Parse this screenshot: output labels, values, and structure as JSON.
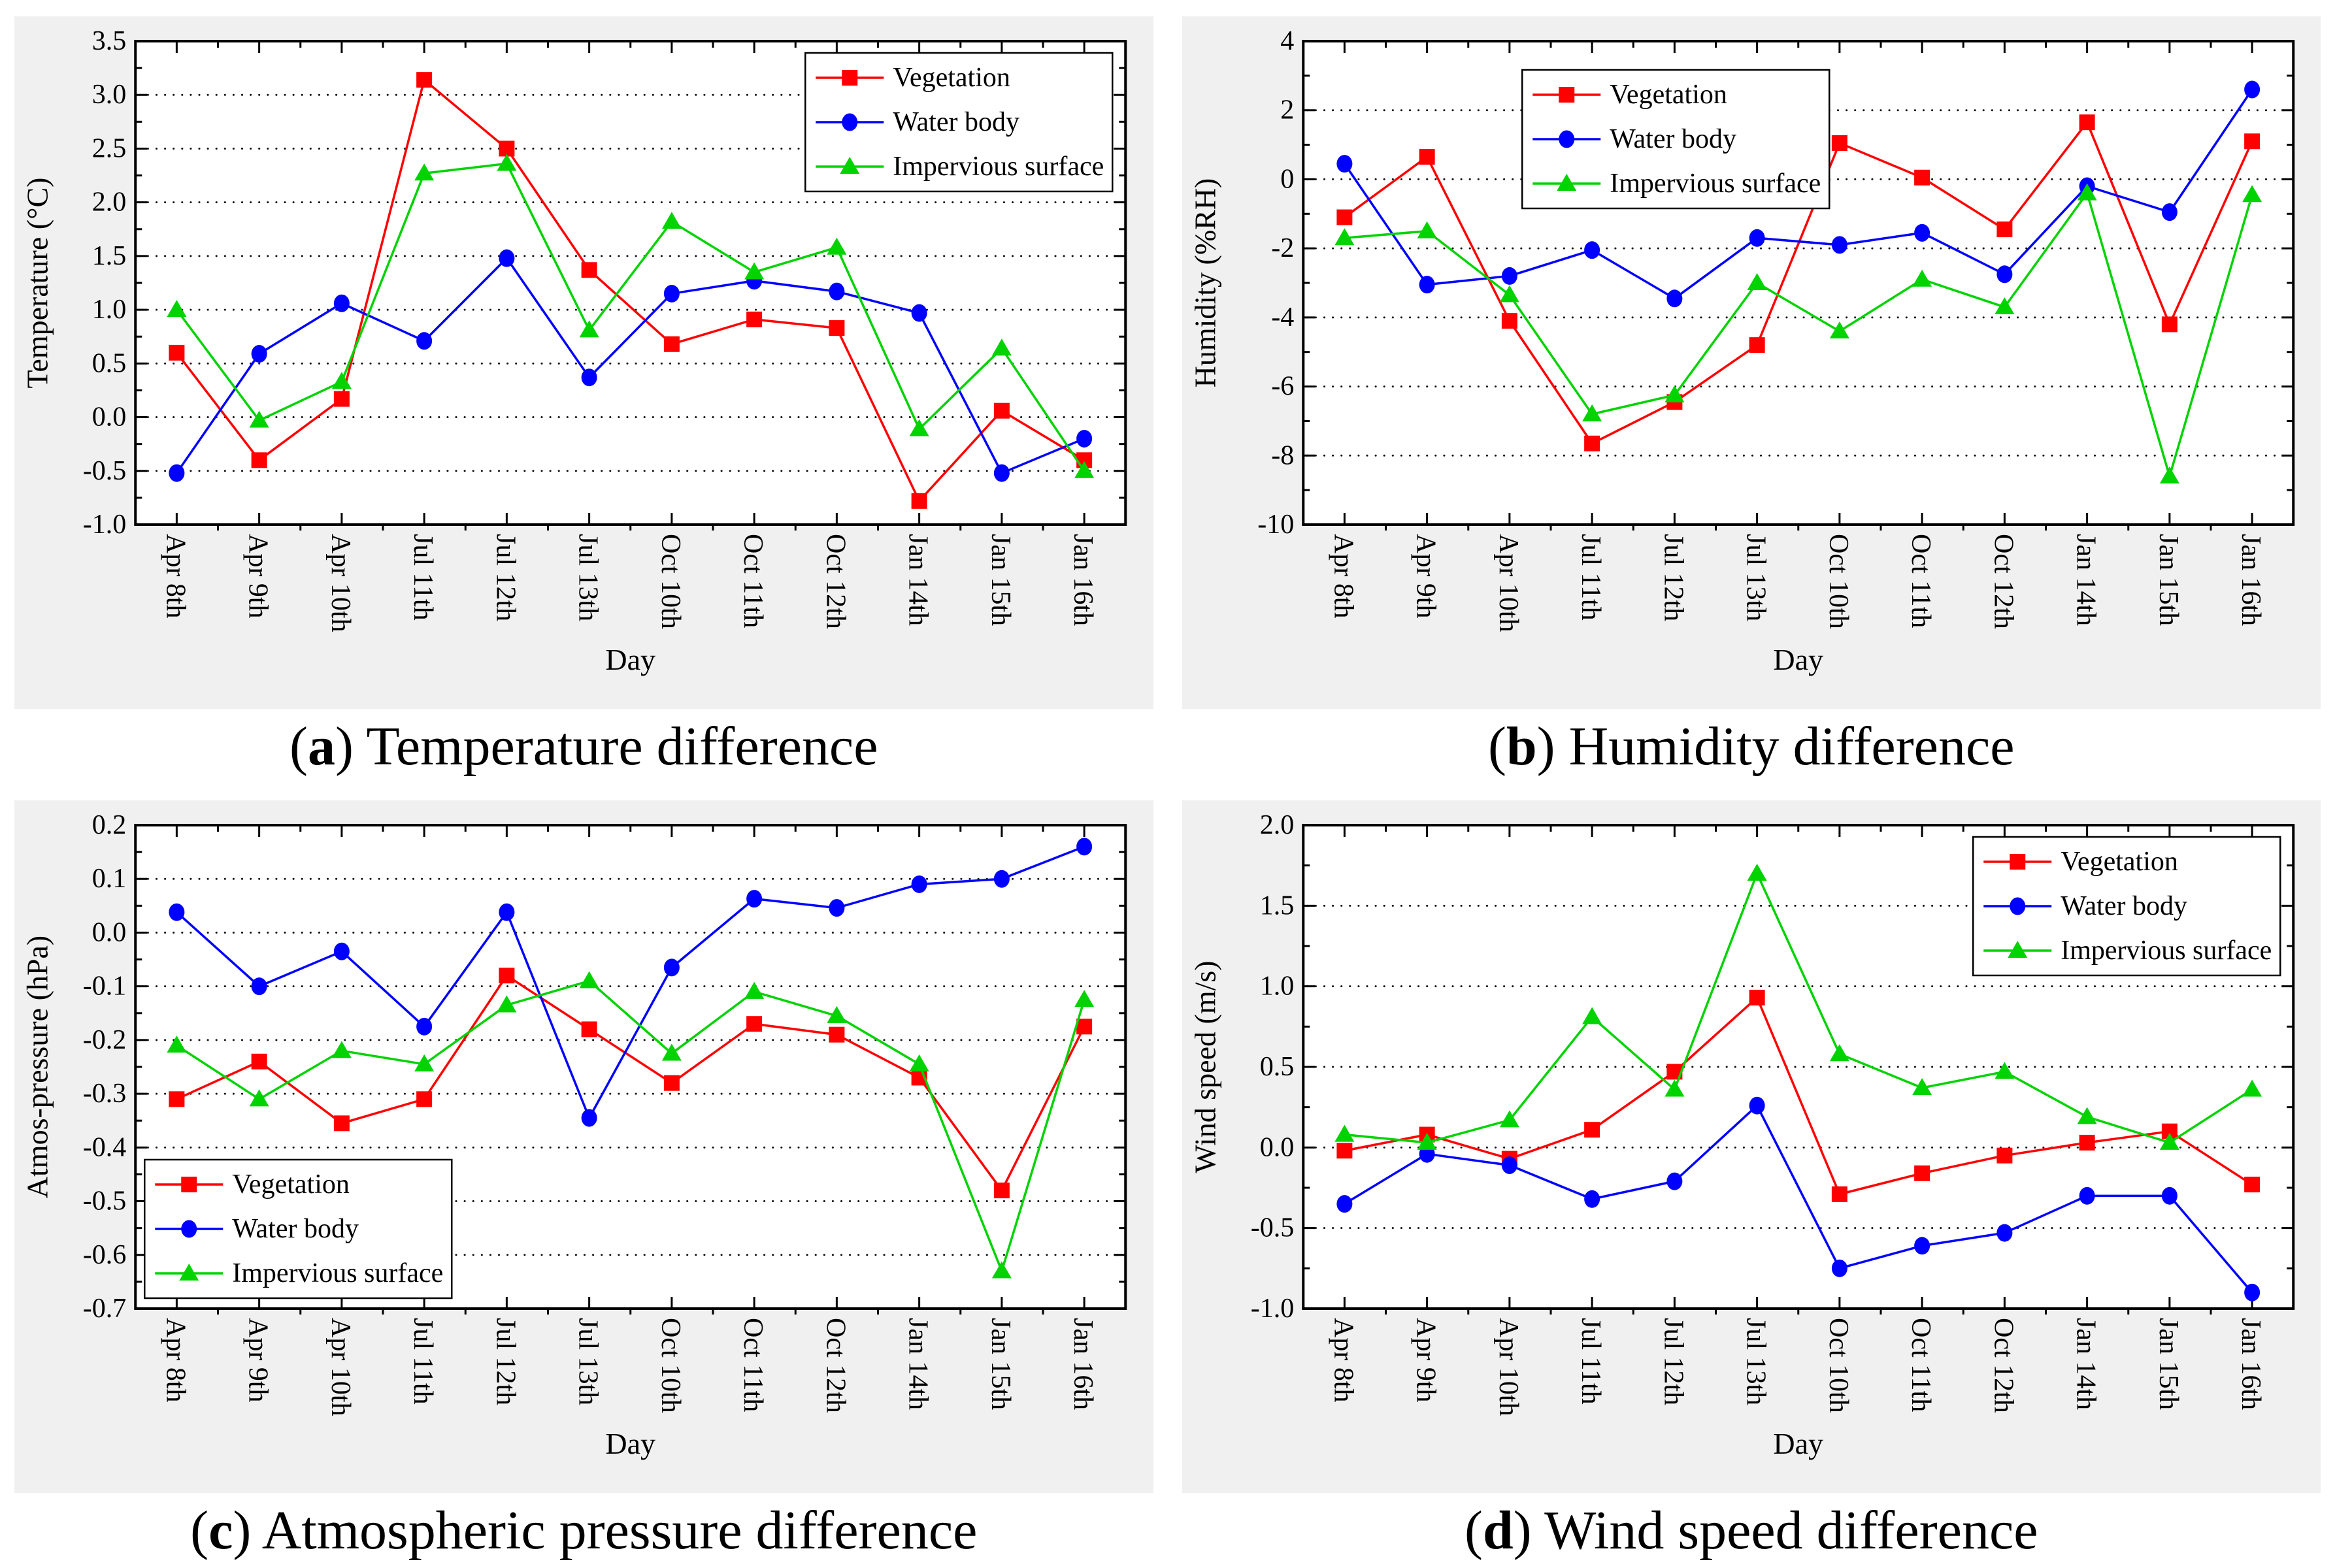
{
  "page": {
    "background": "#ffffff"
  },
  "colors": {
    "panel_background": "#f0f0f0",
    "plot_background": "#ffffff",
    "axis": "#000000",
    "gridline": "#111111",
    "vegetation": "#ff0000",
    "water_body": "#0000ff",
    "impervious_surface": "#00d300"
  },
  "chart_data": [
    {
      "type": "line",
      "caption_open": "(",
      "caption_letter": "a",
      "caption_rest": ") Temperature difference",
      "ylabel": "Temperature (°C)",
      "xlabel": "Day",
      "ylim": [
        -1.0,
        3.5
      ],
      "ytick_step": 0.5,
      "ytick_minor_step": 0.25,
      "ytick_labels": [
        "3.5",
        "3.0",
        "2.5",
        "2.0",
        "1.5",
        "1.0",
        "0.5",
        "0.0",
        "-0.5",
        "-1.0"
      ],
      "grid": "horizontal-dotted",
      "legend_pos": "top-right",
      "categories": [
        "Apr 8th",
        "Apr 9th",
        "Apr 10th",
        "Jul 11th",
        "Jul 12th",
        "Jul 13th",
        "Oct 10th",
        "Oct 11th",
        "Oct 12th",
        "Jan 14th",
        "Jan 15th",
        "Jan 16th"
      ],
      "series": [
        {
          "name": "Vegetation",
          "marker": "square",
          "color": "#ff0000",
          "values": [
            0.6,
            -0.4,
            0.17,
            3.14,
            2.5,
            1.37,
            0.68,
            0.91,
            0.83,
            -0.78,
            0.06,
            -0.4
          ]
        },
        {
          "name": "Water body",
          "marker": "circle",
          "color": "#0000ff",
          "values": [
            -0.52,
            0.59,
            1.06,
            0.71,
            1.48,
            0.37,
            1.15,
            1.27,
            1.17,
            0.97,
            -0.52,
            -0.2
          ]
        },
        {
          "name": "Impervious surface",
          "marker": "triangle",
          "color": "#00d300",
          "values": [
            1.0,
            -0.03,
            0.33,
            2.27,
            2.36,
            0.81,
            1.82,
            1.35,
            1.58,
            -0.11,
            0.64,
            -0.5
          ]
        }
      ]
    },
    {
      "type": "line",
      "caption_open": "(",
      "caption_letter": "b",
      "caption_rest": ") Humidity difference",
      "ylabel": "Humidity (%RH)",
      "xlabel": "Day",
      "ylim": [
        -10,
        4
      ],
      "ytick_step": 2,
      "ytick_minor_step": 1,
      "ytick_labels": [
        "4",
        "2",
        "0",
        "-2",
        "-4",
        "-6",
        "-8",
        "-10"
      ],
      "grid": "horizontal-dotted",
      "legend_pos": "top-left",
      "categories": [
        "Apr 8th",
        "Apr 9th",
        "Apr 10th",
        "Jul 11th",
        "Jul 12th",
        "Jul 13th",
        "Oct 10th",
        "Oct 11th",
        "Oct 12th",
        "Jan 14th",
        "Jan 15th",
        "Jan 16th"
      ],
      "series": [
        {
          "name": "Vegetation",
          "marker": "square",
          "color": "#ff0000",
          "values": [
            -1.1,
            0.65,
            -4.1,
            -7.65,
            -6.45,
            -4.8,
            1.05,
            0.05,
            -1.45,
            1.65,
            -4.2,
            1.1
          ]
        },
        {
          "name": "Water body",
          "marker": "circle",
          "color": "#0000ff",
          "values": [
            0.45,
            -3.05,
            -2.8,
            -2.05,
            -3.45,
            -1.7,
            -1.9,
            -1.55,
            -2.75,
            -0.2,
            -0.95,
            2.6
          ]
        },
        {
          "name": "Impervious surface",
          "marker": "triangle",
          "color": "#00d300",
          "values": [
            -1.7,
            -1.5,
            -3.35,
            -6.8,
            -6.25,
            -3.0,
            -4.4,
            -2.9,
            -3.7,
            -0.4,
            -8.6,
            -0.45
          ]
        }
      ]
    },
    {
      "type": "line",
      "caption_open": "(",
      "caption_letter": "c",
      "caption_rest": ") Atmospheric pressure difference",
      "ylabel": "Atmos-pressure (hPa)",
      "xlabel": "Day",
      "ylim": [
        -0.7,
        0.2
      ],
      "ytick_step": 0.1,
      "ytick_minor_step": 0.05,
      "ytick_labels": [
        "0.2",
        "0.1",
        "0.0",
        "-0.1",
        "-0.2",
        "-0.3",
        "-0.4",
        "-0.5",
        "-0.6",
        "-0.7"
      ],
      "grid": "horizontal-dotted",
      "legend_pos": "bottom-left",
      "categories": [
        "Apr 8th",
        "Apr 9th",
        "Apr 10th",
        "Jul 11th",
        "Jul 12th",
        "Jul 13th",
        "Oct 10th",
        "Oct 11th",
        "Oct 12th",
        "Jan 14th",
        "Jan 15th",
        "Jan 16th"
      ],
      "series": [
        {
          "name": "Vegetation",
          "marker": "square",
          "color": "#ff0000",
          "values": [
            -0.31,
            -0.24,
            -0.355,
            -0.31,
            -0.08,
            -0.18,
            -0.28,
            -0.17,
            -0.19,
            -0.27,
            -0.48,
            -0.175
          ]
        },
        {
          "name": "Water body",
          "marker": "circle",
          "color": "#0000ff",
          "values": [
            0.038,
            -0.1,
            -0.035,
            -0.175,
            0.038,
            -0.345,
            -0.065,
            0.063,
            0.046,
            0.09,
            0.1,
            0.16
          ]
        },
        {
          "name": "Impervious surface",
          "marker": "triangle",
          "color": "#00d300",
          "values": [
            -0.21,
            -0.31,
            -0.22,
            -0.245,
            -0.135,
            -0.09,
            -0.225,
            -0.11,
            -0.155,
            -0.245,
            -0.63,
            -0.125
          ]
        }
      ]
    },
    {
      "type": "line",
      "caption_open": "(",
      "caption_letter": "d",
      "caption_rest": ") Wind speed difference",
      "ylabel": "Wind speed (m/s)",
      "xlabel": "Day",
      "ylim": [
        -1.0,
        2.0
      ],
      "ytick_step": 0.5,
      "ytick_minor_step": 0.25,
      "ytick_labels": [
        "2.0",
        "1.5",
        "1.0",
        "0.5",
        "0.0",
        "-0.5",
        "-1.0"
      ],
      "grid": "horizontal-dotted",
      "legend_pos": "top-right",
      "categories": [
        "Apr 8th",
        "Apr 9th",
        "Apr 10th",
        "Jul 11th",
        "Jul 12th",
        "Jul 13th",
        "Oct 10th",
        "Oct 11th",
        "Oct 12th",
        "Jan 14th",
        "Jan 15th",
        "Jan 16th"
      ],
      "series": [
        {
          "name": "Vegetation",
          "marker": "square",
          "color": "#ff0000",
          "values": [
            -0.02,
            0.08,
            -0.07,
            0.11,
            0.47,
            0.93,
            -0.29,
            -0.16,
            -0.05,
            0.03,
            0.1,
            -0.23
          ]
        },
        {
          "name": "Water body",
          "marker": "circle",
          "color": "#0000ff",
          "values": [
            -0.35,
            -0.04,
            -0.11,
            -0.32,
            -0.21,
            0.26,
            -0.75,
            -0.61,
            -0.53,
            -0.3,
            -0.3,
            -0.9
          ]
        },
        {
          "name": "Impervious surface",
          "marker": "triangle",
          "color": "#00d300",
          "values": [
            0.08,
            0.03,
            0.17,
            0.81,
            0.36,
            1.7,
            0.58,
            0.37,
            0.47,
            0.19,
            0.03,
            0.36
          ]
        }
      ]
    }
  ]
}
